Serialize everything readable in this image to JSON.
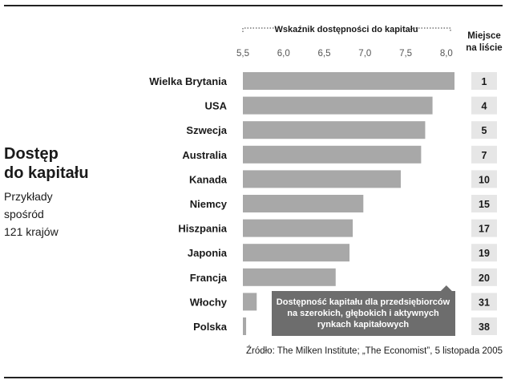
{
  "heading": {
    "title_line1": "Dostęp",
    "title_line2": "do kapitału",
    "sub_line1": "Przykłady",
    "sub_line2": "spośród",
    "sub_line3": "121 krajów"
  },
  "rank_header": {
    "line1": "Miejsce",
    "line2": "na liście"
  },
  "source": "Źródło: The Milken Institute; „The Economist”, 5 listopada 2005",
  "colors": {
    "bar": "#a8a8a8",
    "callout": "#6d6d6d",
    "rank_box": "#e6e6e6",
    "text": "#1a1a1a"
  },
  "chart_data": {
    "type": "bar",
    "orientation": "horizontal",
    "title": "Wskaźnik dostępności do kapitału",
    "xlim": [
      5.5,
      8.1
    ],
    "xticks": [
      5.5,
      6.0,
      6.5,
      7.0,
      7.5,
      8.0
    ],
    "xtick_labels": [
      "5,5",
      "6,0",
      "6,5",
      "7,0",
      "7,5",
      "8,0"
    ],
    "categories": [
      "Wielka Brytania",
      "USA",
      "Szwecja",
      "Australia",
      "Kanada",
      "Niemcy",
      "Hiszpania",
      "Japonia",
      "Francja",
      "Włochy",
      "Polska"
    ],
    "values": [
      8.1,
      7.83,
      7.74,
      7.69,
      7.44,
      6.98,
      6.85,
      6.81,
      6.64,
      5.67,
      5.54
    ],
    "ranks": [
      "1",
      "4",
      "5",
      "7",
      "10",
      "15",
      "17",
      "19",
      "20",
      "31",
      "38"
    ],
    "annotation": {
      "lines": [
        "Dostępność kapitału dla przedsiębiorców",
        "na szerokich, głębokich i aktywnych",
        "rynkach kapitałowych"
      ],
      "arrow_value": 8.0
    },
    "grid": false
  }
}
